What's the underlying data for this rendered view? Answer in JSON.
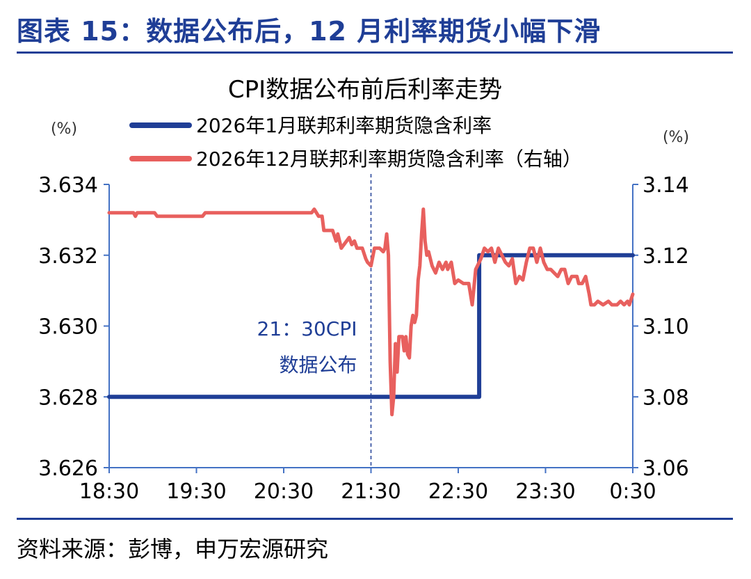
{
  "figure": {
    "title": "图表 15：数据公布后，12 月利率期货小幅下滑",
    "source": "资料来源：彭博，申万宏源研究"
  },
  "chart_data": {
    "type": "line",
    "title": "CPI数据公布前后利率走势",
    "y_unit_left": "(%)",
    "y_unit_right": "(%)",
    "x_ticks": [
      "18:30",
      "19:30",
      "20:30",
      "21:30",
      "22:30",
      "23:30",
      "0:30"
    ],
    "xlim_hours_after_1830": [
      0,
      6
    ],
    "y_left": {
      "lim": [
        3.626,
        3.634
      ],
      "ticks": [
        "3.626",
        "3.628",
        "3.630",
        "3.632",
        "3.634"
      ]
    },
    "y_right": {
      "lim": [
        3.06,
        3.14
      ],
      "ticks": [
        "3.06",
        "3.08",
        "3.10",
        "3.12",
        "3.14"
      ]
    },
    "annotation": {
      "x": 3.0,
      "lines": [
        "21：30CPI",
        "数据公布"
      ]
    },
    "series": [
      {
        "name": "2026年1月联邦利率期货隐含利率",
        "axis": "left",
        "color": "#1f3e96",
        "points": [
          [
            0,
            3.628
          ],
          [
            4.24,
            3.628
          ],
          [
            4.24,
            3.632
          ],
          [
            6,
            3.632
          ]
        ]
      },
      {
        "name": "2026年12月联邦利率期货隐含利率（右轴）",
        "axis": "right",
        "color": "#e8605e",
        "points": [
          [
            0,
            3.132
          ],
          [
            0.28,
            3.132
          ],
          [
            0.3,
            3.131
          ],
          [
            0.32,
            3.132
          ],
          [
            0.52,
            3.132
          ],
          [
            0.55,
            3.131
          ],
          [
            1.07,
            3.131
          ],
          [
            1.1,
            3.132
          ],
          [
            2.32,
            3.132
          ],
          [
            2.35,
            3.133
          ],
          [
            2.4,
            3.131
          ],
          [
            2.44,
            3.131
          ],
          [
            2.46,
            3.127
          ],
          [
            2.56,
            3.127
          ],
          [
            2.6,
            3.124
          ],
          [
            2.62,
            3.126
          ],
          [
            2.66,
            3.122
          ],
          [
            2.72,
            3.124
          ],
          [
            2.75,
            3.125
          ],
          [
            2.78,
            3.123
          ],
          [
            2.81,
            3.124
          ],
          [
            2.84,
            3.122
          ],
          [
            2.9,
            3.122
          ],
          [
            2.94,
            3.119
          ],
          [
            2.96,
            3.118
          ],
          [
            3.0,
            3.117
          ],
          [
            3.04,
            3.122
          ],
          [
            3.1,
            3.122
          ],
          [
            3.14,
            3.121
          ],
          [
            3.16,
            3.122
          ],
          [
            3.18,
            3.126
          ],
          [
            3.2,
            3.12
          ],
          [
            3.22,
            3.09
          ],
          [
            3.24,
            3.075
          ],
          [
            3.26,
            3.08
          ],
          [
            3.28,
            3.095
          ],
          [
            3.3,
            3.087
          ],
          [
            3.32,
            3.097
          ],
          [
            3.36,
            3.097
          ],
          [
            3.38,
            3.093
          ],
          [
            3.4,
            3.097
          ],
          [
            3.42,
            3.092
          ],
          [
            3.44,
            3.091
          ],
          [
            3.46,
            3.1
          ],
          [
            3.48,
            3.103
          ],
          [
            3.5,
            3.101
          ],
          [
            3.52,
            3.103
          ],
          [
            3.54,
            3.113
          ],
          [
            3.56,
            3.117
          ],
          [
            3.58,
            3.126
          ],
          [
            3.6,
            3.133
          ],
          [
            3.62,
            3.124
          ],
          [
            3.64,
            3.12
          ],
          [
            3.66,
            3.121
          ],
          [
            3.7,
            3.117
          ],
          [
            3.74,
            3.115
          ],
          [
            3.78,
            3.118
          ],
          [
            3.82,
            3.116
          ],
          [
            3.86,
            3.118
          ],
          [
            3.88,
            3.116
          ],
          [
            3.92,
            3.118
          ],
          [
            3.96,
            3.112
          ],
          [
            4.0,
            3.113
          ],
          [
            4.06,
            3.112
          ],
          [
            4.12,
            3.112
          ],
          [
            4.16,
            3.106
          ],
          [
            4.2,
            3.116
          ],
          [
            4.22,
            3.117
          ],
          [
            4.26,
            3.119
          ],
          [
            4.3,
            3.122
          ],
          [
            4.34,
            3.121
          ],
          [
            4.38,
            3.122
          ],
          [
            4.42,
            3.118
          ],
          [
            4.46,
            3.122
          ],
          [
            4.5,
            3.12
          ],
          [
            4.54,
            3.118
          ],
          [
            4.58,
            3.117
          ],
          [
            4.62,
            3.119
          ],
          [
            4.66,
            3.112
          ],
          [
            4.7,
            3.114
          ],
          [
            4.74,
            3.113
          ],
          [
            4.78,
            3.118
          ],
          [
            4.82,
            3.122
          ],
          [
            4.86,
            3.122
          ],
          [
            4.9,
            3.118
          ],
          [
            4.94,
            3.122
          ],
          [
            4.98,
            3.118
          ],
          [
            5.02,
            3.116
          ],
          [
            5.06,
            3.116
          ],
          [
            5.1,
            3.115
          ],
          [
            5.14,
            3.114
          ],
          [
            5.18,
            3.116
          ],
          [
            5.22,
            3.116
          ],
          [
            5.26,
            3.112
          ],
          [
            5.3,
            3.114
          ],
          [
            5.36,
            3.114
          ],
          [
            5.38,
            3.112
          ],
          [
            5.42,
            3.112
          ],
          [
            5.46,
            3.114
          ],
          [
            5.5,
            3.109
          ],
          [
            5.52,
            3.106
          ],
          [
            5.56,
            3.106
          ],
          [
            5.6,
            3.107
          ],
          [
            5.66,
            3.106
          ],
          [
            5.72,
            3.107
          ],
          [
            5.76,
            3.106
          ],
          [
            5.82,
            3.106
          ],
          [
            5.86,
            3.107
          ],
          [
            5.9,
            3.106
          ],
          [
            5.94,
            3.107
          ],
          [
            5.96,
            3.106
          ],
          [
            6.0,
            3.109
          ]
        ]
      }
    ]
  }
}
